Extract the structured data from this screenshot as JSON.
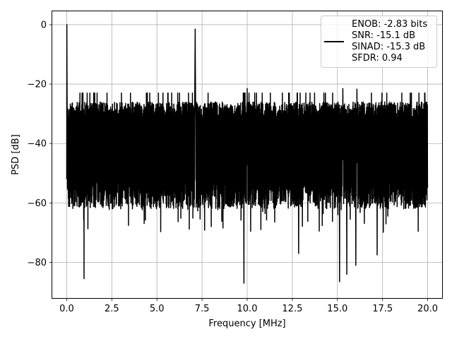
{
  "chart_data": {
    "type": "line",
    "title": "",
    "xlabel": "Frequency [MHz]",
    "ylabel": "PSD [dB]",
    "xlim": [
      -0.8,
      20.8
    ],
    "ylim": [
      -92,
      4.5
    ],
    "xticks": [
      0.0,
      2.5,
      5.0,
      7.5,
      10.0,
      12.5,
      15.0,
      17.5,
      20.0
    ],
    "xtick_labels": [
      "0.0",
      "2.5",
      "5.0",
      "7.5",
      "10.0",
      "12.5",
      "15.0",
      "17.5",
      "20.0"
    ],
    "yticks": [
      0,
      -20,
      -40,
      -60,
      -80
    ],
    "ytick_labels": [
      "0",
      "−20",
      "−40",
      "−60",
      "−80"
    ],
    "grid": true,
    "legend_position": "top-right",
    "line_color": "#000000",
    "legend": {
      "entries": [
        "ENOB: -2.83 bits",
        "SNR: -15.1 dB",
        "SINAD: -15.3 dB",
        "SFDR: 0.94"
      ]
    },
    "series": [
      {
        "x_range": [
          0.0,
          20.0
        ],
        "noise_floor_band": [
          -58,
          -26
        ],
        "noise_upper_excursion_max": -23,
        "noise_lower_excursion_min": -87,
        "peaks": [
          {
            "x": 0.0,
            "y": 0.0
          },
          {
            "x": 7.12,
            "y": -1.5
          },
          {
            "x": 10.0,
            "y": -21.5
          },
          {
            "x": 15.3,
            "y": -21.5
          },
          {
            "x": 16.08,
            "y": -21.7
          }
        ],
        "deep_nulls": [
          {
            "x": 0.96,
            "y": -85.5
          },
          {
            "x": 9.82,
            "y": -87.0
          },
          {
            "x": 15.12,
            "y": -86.5
          },
          {
            "x": 15.52,
            "y": -84.0
          },
          {
            "x": 12.85,
            "y": -77.0
          },
          {
            "x": 16.02,
            "y": -81.0
          },
          {
            "x": 17.2,
            "y": -77.5
          }
        ]
      }
    ]
  }
}
